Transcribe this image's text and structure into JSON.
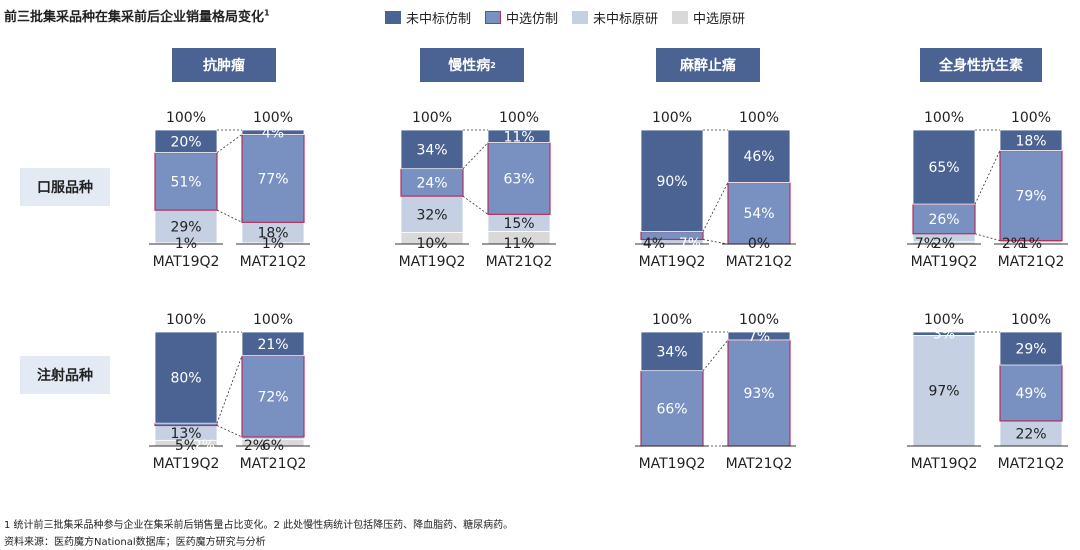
{
  "title": "前三批集采品种在集采前后企业销量格局变化",
  "title_sup": "1",
  "legend": [
    {
      "label": "未中标仿制",
      "color": "#4a6392",
      "border": "#4a6392"
    },
    {
      "label": "中选仿制",
      "color": "#7891c0",
      "border": "#b03060"
    },
    {
      "label": "未中标原研",
      "color": "#c5d0e2",
      "border": "#c5d0e2"
    },
    {
      "label": "中选原研",
      "color": "#d9d9d9",
      "border": "#d9d9d9"
    }
  ],
  "categories_header": [
    {
      "label": "抗肿瘤",
      "sup": ""
    },
    {
      "label": "慢性病",
      "sup": "2"
    },
    {
      "label": "麻醉止痛",
      "sup": ""
    },
    {
      "label": "全身性抗生素",
      "sup": ""
    }
  ],
  "row_labels": [
    "口服品种",
    "注射品种"
  ],
  "footnotes": {
    "note1": "1 统计前三批集采品种参与企业在集采前后销售量占比变化。2 此处慢性病统计包括降压药、降血脂药、糖尿病药。",
    "note2": "资料来源：医药魔方National数据库；医药魔方研究与分析"
  },
  "chart_data": {
    "type": "bar",
    "stacked": "100%",
    "periods": [
      "MAT19Q2",
      "MAT21Q2"
    ],
    "segment_order_bottom_to_top": [
      "中选原研",
      "未中标原研",
      "中选仿制",
      "未中标仿制"
    ],
    "total_label": "100%",
    "panels": [
      {
        "category": "抗肿瘤",
        "route": "口服品种",
        "bars": [
          {
            "period": "MAT19Q2",
            "values": {
              "中选原研": 1,
              "未中标原研": 29,
              "中选仿制": 51,
              "未中标仿制": 20
            }
          },
          {
            "period": "MAT21Q2",
            "values": {
              "中选原研": 1,
              "未中标原研": 18,
              "中选仿制": 77,
              "未中标仿制": 4
            }
          }
        ]
      },
      {
        "category": "抗肿瘤",
        "route": "注射品种",
        "bars": [
          {
            "period": "MAT19Q2",
            "values": {
              "中选原研": 5,
              "未中标原研": 13,
              "中选仿制": 2,
              "未中标仿制": 80
            }
          },
          {
            "period": "MAT21Q2",
            "values": {
              "中选原研": 6,
              "未中标原研": 2,
              "中选仿制": 72,
              "未中标仿制": 21
            }
          }
        ]
      },
      {
        "category": "慢性病",
        "route": "口服品种",
        "bars": [
          {
            "period": "MAT19Q2",
            "values": {
              "中选原研": 10,
              "未中标原研": 32,
              "中选仿制": 24,
              "未中标仿制": 34
            }
          },
          {
            "period": "MAT21Q2",
            "values": {
              "中选原研": 11,
              "未中标原研": 15,
              "中选仿制": 63,
              "未中标仿制": 11
            }
          }
        ]
      },
      {
        "category": "麻醉止痛",
        "route": "口服品种",
        "bars": [
          {
            "period": "MAT19Q2",
            "values": {
              "中选原研": 0,
              "未中标原研": 4,
              "中选仿制": 7,
              "未中标仿制": 90
            }
          },
          {
            "period": "MAT21Q2",
            "values": {
              "中选原研": 0,
              "未中标原研": 0,
              "中选仿制": 54,
              "未中标仿制": 46
            }
          }
        ]
      },
      {
        "category": "麻醉止痛",
        "route": "注射品种",
        "bars": [
          {
            "period": "MAT19Q2",
            "values": {
              "中选原研": 0,
              "未中标原研": 0,
              "中选仿制": 66,
              "未中标仿制": 34
            }
          },
          {
            "period": "MAT21Q2",
            "values": {
              "中选原研": 0,
              "未中标原研": 0,
              "中选仿制": 93,
              "未中标仿制": 7
            }
          }
        ]
      },
      {
        "category": "全身性抗生素",
        "route": "口服品种",
        "bars": [
          {
            "period": "MAT19Q2",
            "values": {
              "中选原研": 2,
              "未中标原研": 7,
              "中选仿制": 26,
              "未中标仿制": 65
            }
          },
          {
            "period": "MAT21Q2",
            "values": {
              "中选原研": 1,
              "未中标原研": 2,
              "中选仿制": 79,
              "未中标仿制": 18
            }
          }
        ]
      },
      {
        "category": "全身性抗生素",
        "route": "注射品种",
        "bars": [
          {
            "period": "MAT19Q2",
            "values": {
              "中选原研": 0,
              "未中标原研": 97,
              "中选仿制": 0,
              "未中标仿制": 3
            }
          },
          {
            "period": "MAT21Q2",
            "values": {
              "中选原研": 0,
              "未中标原研": 22,
              "中选仿制": 49,
              "未中标仿制": 29
            }
          }
        ]
      }
    ]
  }
}
